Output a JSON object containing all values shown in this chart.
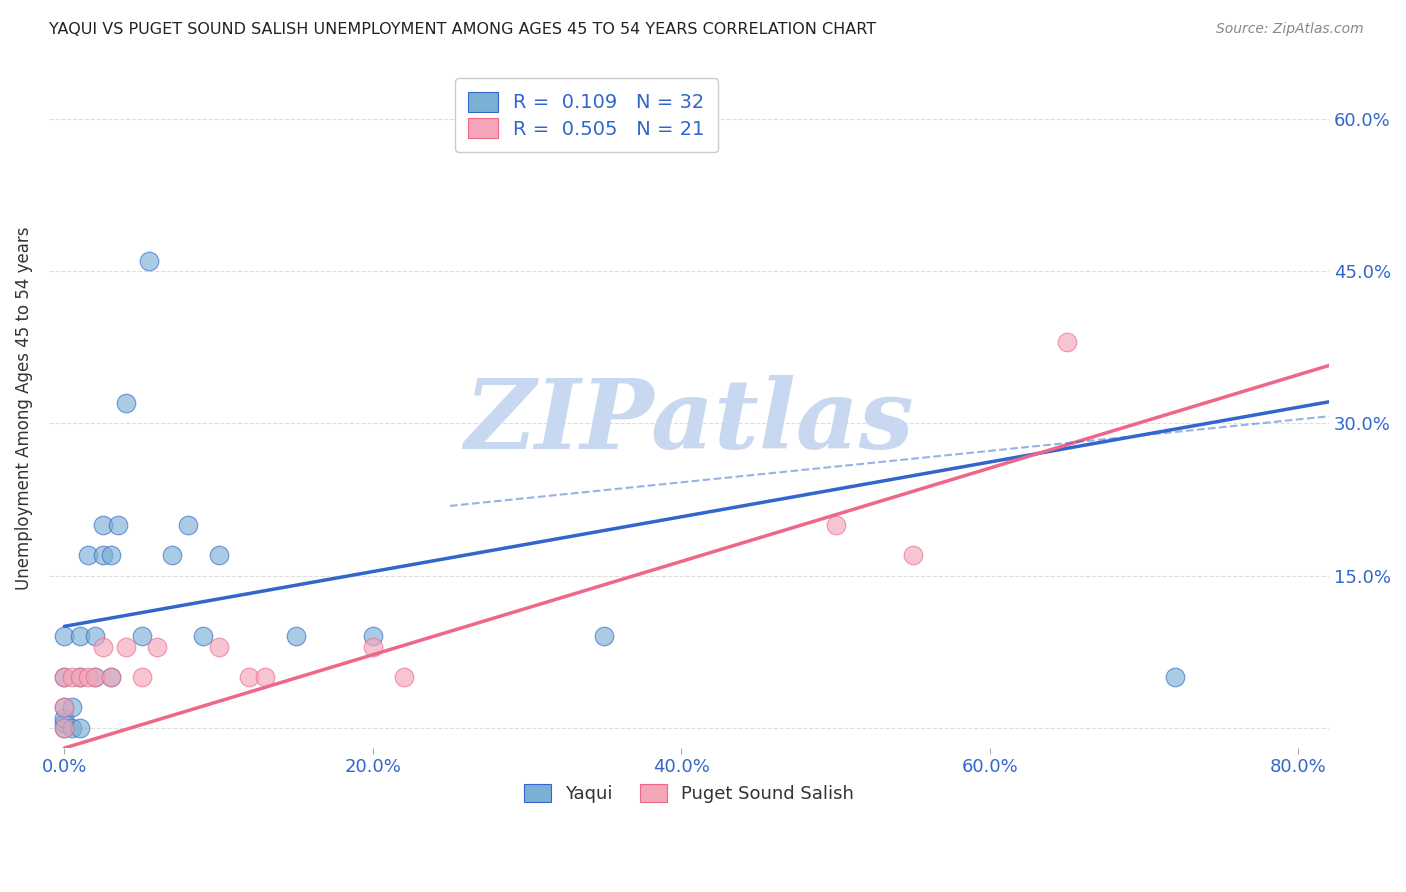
{
  "title": "YAQUI VS PUGET SOUND SALISH UNEMPLOYMENT AMONG AGES 45 TO 54 YEARS CORRELATION CHART",
  "source": "Source: ZipAtlas.com",
  "ylabel": "Unemployment Among Ages 45 to 54 years",
  "xlim": [
    -0.01,
    0.82
  ],
  "ylim": [
    -0.02,
    0.65
  ],
  "xticks": [
    0.0,
    0.2,
    0.4,
    0.6,
    0.8
  ],
  "xtick_labels": [
    "0.0%",
    "20.0%",
    "40.0%",
    "60.0%",
    "80.0%"
  ],
  "yticks": [
    0.0,
    0.15,
    0.3,
    0.45,
    0.6
  ],
  "ytick_labels_right": [
    "",
    "15.0%",
    "30.0%",
    "45.0%",
    "60.0%"
  ],
  "yaqui_x": [
    0.0,
    0.0,
    0.0,
    0.0,
    0.0,
    0.0,
    0.005,
    0.005,
    0.01,
    0.01,
    0.01,
    0.015,
    0.02,
    0.02,
    0.025,
    0.025,
    0.03,
    0.03,
    0.035,
    0.04,
    0.05,
    0.055,
    0.07,
    0.08,
    0.09,
    0.1,
    0.15,
    0.2,
    0.35,
    0.72
  ],
  "yaqui_y": [
    0.0,
    0.005,
    0.01,
    0.02,
    0.05,
    0.09,
    0.0,
    0.02,
    0.0,
    0.05,
    0.09,
    0.17,
    0.05,
    0.09,
    0.17,
    0.2,
    0.05,
    0.17,
    0.2,
    0.32,
    0.09,
    0.46,
    0.17,
    0.2,
    0.09,
    0.17,
    0.09,
    0.09,
    0.09,
    0.05
  ],
  "puget_x": [
    0.0,
    0.0,
    0.0,
    0.005,
    0.01,
    0.015,
    0.02,
    0.025,
    0.03,
    0.04,
    0.05,
    0.06,
    0.1,
    0.12,
    0.13,
    0.2,
    0.22,
    0.5,
    0.55,
    0.65
  ],
  "puget_y": [
    0.0,
    0.02,
    0.05,
    0.05,
    0.05,
    0.05,
    0.05,
    0.08,
    0.05,
    0.08,
    0.05,
    0.08,
    0.08,
    0.05,
    0.05,
    0.08,
    0.05,
    0.2,
    0.17,
    0.38
  ],
  "yaqui_color": "#7bafd4",
  "puget_color": "#f4a7b9",
  "yaqui_line_color": "#3366cc",
  "puget_line_color": "#ee6688",
  "yaqui_line_intercept": 0.1,
  "yaqui_line_slope": 0.27,
  "puget_line_intercept": -0.02,
  "puget_line_slope": 0.46,
  "dashed_line_intercept": 0.18,
  "dashed_line_slope": 0.155,
  "yaqui_R": 0.109,
  "yaqui_N": 32,
  "puget_R": 0.505,
  "puget_N": 21,
  "watermark": "ZIPatlas",
  "watermark_color": "#c8d8f0",
  "legend_label_yaqui": "Yaqui",
  "legend_label_puget": "Puget Sound Salish",
  "background_color": "#ffffff",
  "grid_color": "#dddddd"
}
